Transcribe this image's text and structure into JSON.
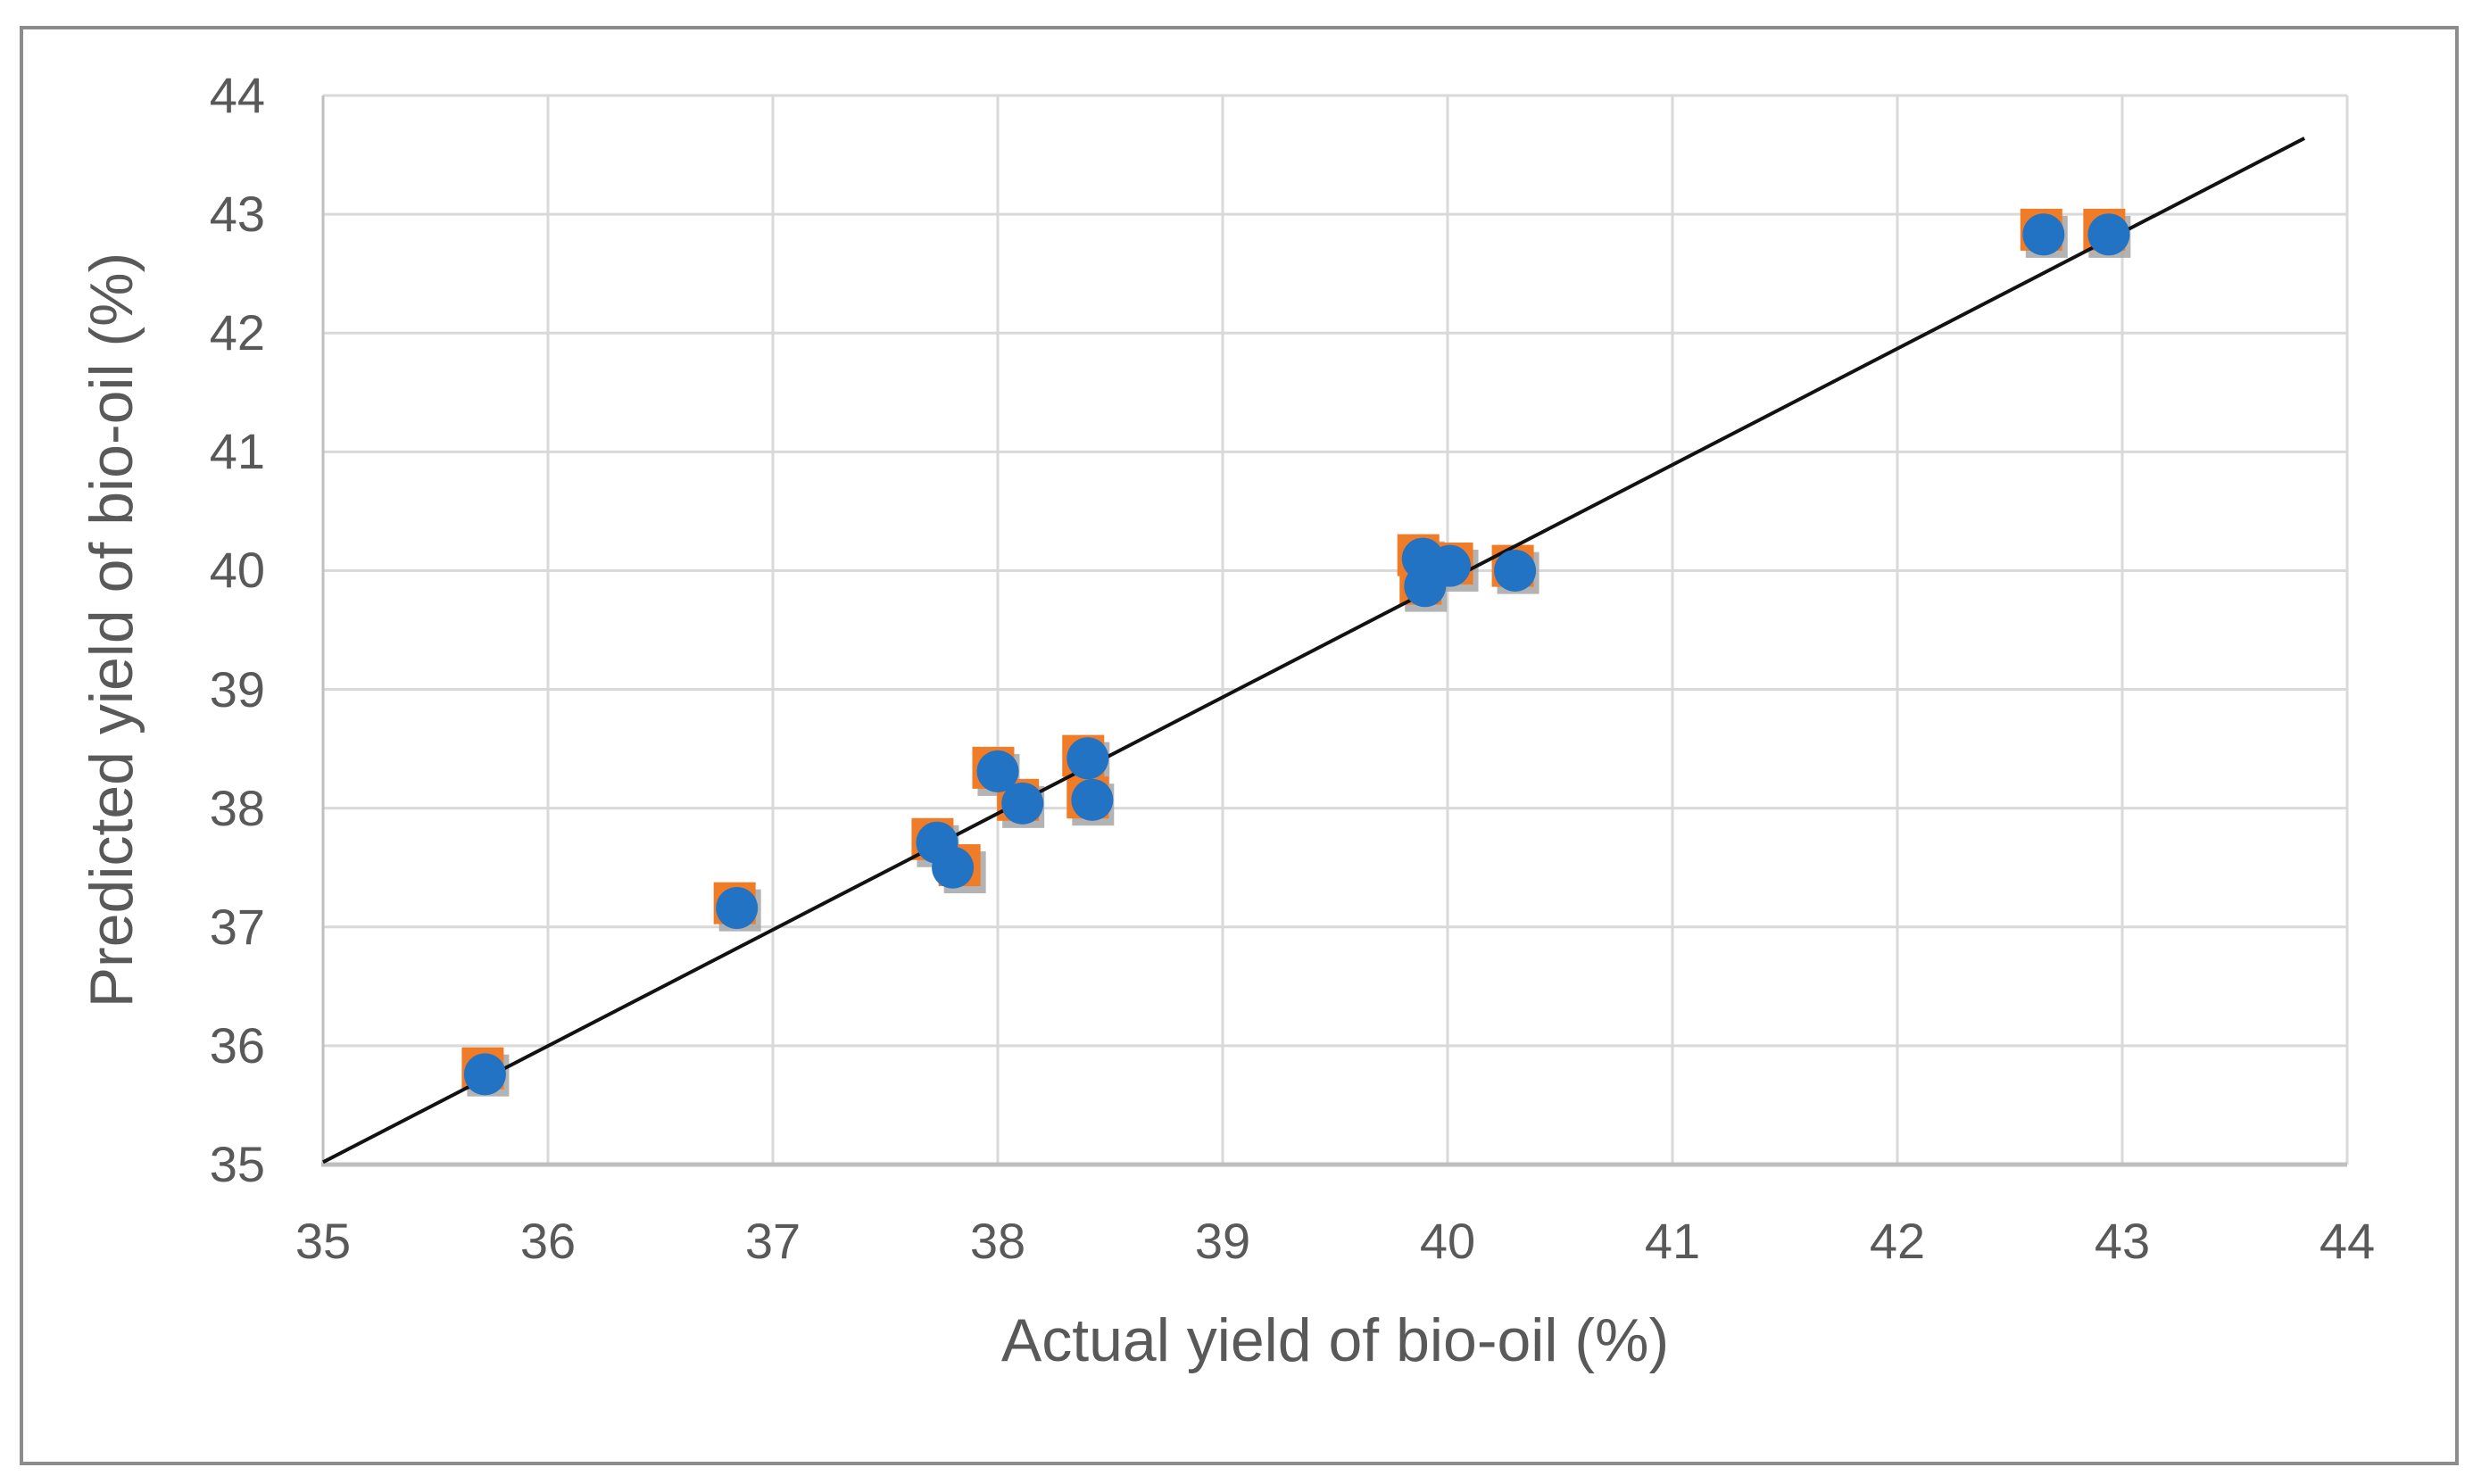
{
  "figure": {
    "background": "#ffffff",
    "border_color": "#8c8c8c"
  },
  "chart_data": {
    "type": "scatter",
    "title": "",
    "xlabel": "Actual yield of bio-oil (%)",
    "ylabel": "Predicted yield of bio-oil (%)",
    "xlim": [
      35,
      44
    ],
    "ylim": [
      35,
      44
    ],
    "xticks": [
      "35",
      "36",
      "37",
      "38",
      "39",
      "40",
      "41",
      "42",
      "43",
      "44"
    ],
    "yticks": [
      "35",
      "36",
      "37",
      "38",
      "39",
      "40",
      "41",
      "42",
      "43",
      "44"
    ],
    "grid": true,
    "legend": "none",
    "colors": {
      "gridline": "#d9d9d9",
      "axis_line": "#bfbfbf",
      "tick_label": "#595959",
      "axis_title": "#595959",
      "marker_circle": "#2373c4",
      "marker_square": "#f07c28",
      "marker_shadow": "#a6a6a6",
      "trendline": "#121212"
    },
    "series": [
      {
        "name": "orange-squares",
        "marker": "square",
        "color": "#f07c28",
        "points": [
          [
            35.71,
            35.81
          ],
          [
            36.83,
            37.2
          ],
          [
            37.71,
            37.74
          ],
          [
            37.83,
            37.52
          ],
          [
            37.98,
            38.34
          ],
          [
            38.09,
            38.07
          ],
          [
            38.38,
            38.44
          ],
          [
            38.4,
            38.09
          ],
          [
            39.87,
            40.13
          ],
          [
            40.02,
            40.06
          ],
          [
            39.88,
            39.89
          ],
          [
            40.29,
            40.04
          ],
          [
            42.64,
            42.87
          ],
          [
            42.92,
            42.87
          ]
        ]
      },
      {
        "name": "blue-circles",
        "marker": "circle",
        "color": "#2373c4",
        "points": [
          [
            35.72,
            35.76
          ],
          [
            36.84,
            37.16
          ],
          [
            37.73,
            37.71
          ],
          [
            37.8,
            37.5
          ],
          [
            38.0,
            38.31
          ],
          [
            38.11,
            38.04
          ],
          [
            38.4,
            38.42
          ],
          [
            38.42,
            38.07
          ],
          [
            39.89,
            40.1
          ],
          [
            40.01,
            40.04
          ],
          [
            39.9,
            39.87
          ],
          [
            40.3,
            40.0
          ],
          [
            42.65,
            42.83
          ],
          [
            42.94,
            42.83
          ]
        ]
      }
    ],
    "trendline": {
      "type": "linear",
      "x1": 35.0,
      "y1": 35.02,
      "x2": 43.81,
      "y2": 43.64
    }
  }
}
